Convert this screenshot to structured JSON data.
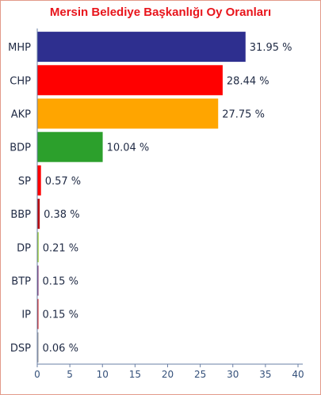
{
  "chart_data": {
    "type": "bar",
    "orientation": "horizontal",
    "title": "Mersin  Belediye Başkanlığı Oy Oranları",
    "categories": [
      "MHP",
      "CHP",
      "AKP",
      "BDP",
      "SP",
      "BBP",
      "DP",
      "BTP",
      "IP",
      "DSP"
    ],
    "values": [
      31.95,
      28.44,
      27.75,
      10.04,
      0.57,
      0.38,
      0.21,
      0.15,
      0.15,
      0.06
    ],
    "value_labels": [
      "31.95 %",
      "28.44 %",
      "27.75 %",
      "10.04 %",
      "0.57 %",
      "0.38 %",
      "0.21 %",
      "0.15 %",
      "0.15 %",
      "0.06 %"
    ],
    "colors": [
      "#2e2f8f",
      "#ff0000",
      "#ffa500",
      "#2ca02c",
      "#ff0000",
      "#b80f12",
      "#9acd32",
      "#7a2a6a",
      "#d11a1a",
      "#9a9a9a"
    ],
    "xlim": [
      0,
      40
    ],
    "xticks": [
      "0",
      "5",
      "10",
      "15",
      "20",
      "25",
      "30",
      "35",
      "40"
    ],
    "xlabel": "",
    "ylabel": "",
    "grid": false,
    "legend": "none"
  }
}
